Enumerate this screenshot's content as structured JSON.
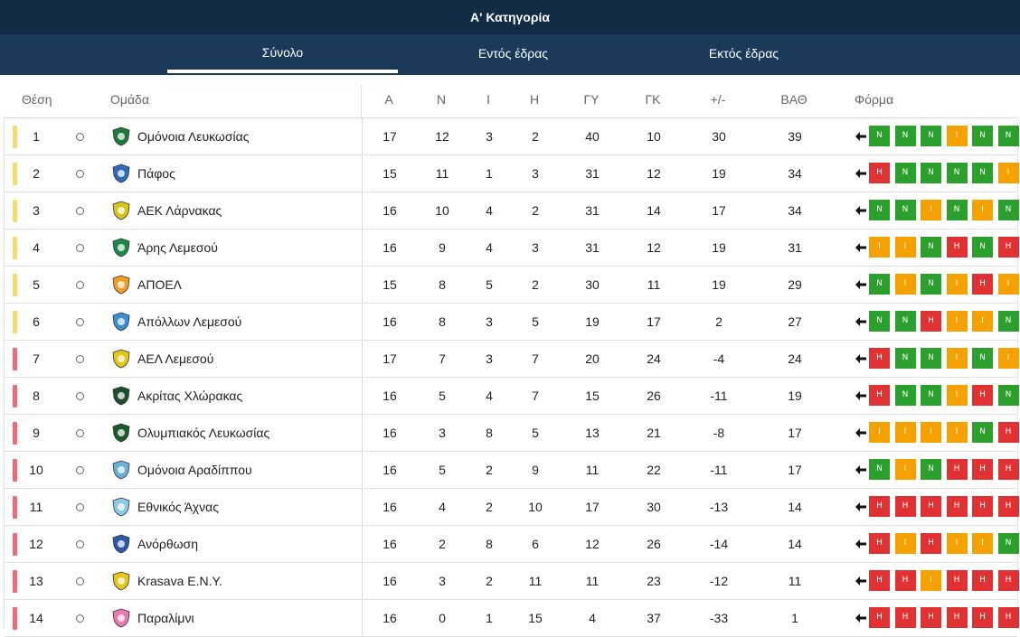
{
  "title": "A' Κατηγορία",
  "tabs": [
    {
      "label": "Σύνολο",
      "active": true
    },
    {
      "label": "Εντός έδρας",
      "active": false
    },
    {
      "label": "Εκτός έδρας",
      "active": false
    }
  ],
  "headers": {
    "pos": "Θέση",
    "team": "Ομάδα",
    "played": "Α",
    "won": "Ν",
    "drawn": "Ι",
    "lost": "Η",
    "gf": "ΓΥ",
    "ga": "ΓΚ",
    "gd": "+/-",
    "pts": "ΒΑΘ",
    "form": "Φόρμα"
  },
  "colors": {
    "win": "#2ca02c",
    "draw": "#f5a100",
    "loss": "#e03232",
    "zone_top": "#f6dd6b",
    "zone_bottom": "#ef6b7b"
  },
  "rows": [
    {
      "pos": "1",
      "team": "Ομόνοια Λευκωσίας",
      "played": "17",
      "won": "12",
      "drawn": "3",
      "lost": "2",
      "gf": "40",
      "ga": "10",
      "gd": "30",
      "pts": "39",
      "zone": "top",
      "logo_color": "#1e7a3a",
      "form": [
        "N",
        "N",
        "N",
        "I",
        "N",
        "N"
      ]
    },
    {
      "pos": "2",
      "team": "Πάφος",
      "played": "15",
      "won": "11",
      "drawn": "1",
      "lost": "3",
      "gf": "31",
      "ga": "12",
      "gd": "19",
      "pts": "34",
      "zone": "top",
      "logo_color": "#2e6bb8",
      "form": [
        "H",
        "N",
        "N",
        "N",
        "N",
        "I"
      ]
    },
    {
      "pos": "3",
      "team": "ΑΕΚ Λάρνακας",
      "played": "16",
      "won": "10",
      "drawn": "4",
      "lost": "2",
      "gf": "31",
      "ga": "14",
      "gd": "17",
      "pts": "34",
      "zone": "top",
      "logo_color": "#d8c41a",
      "form": [
        "N",
        "N",
        "I",
        "N",
        "I",
        "N"
      ]
    },
    {
      "pos": "4",
      "team": "Άρης Λεμεσού",
      "played": "16",
      "won": "9",
      "drawn": "4",
      "lost": "3",
      "gf": "31",
      "ga": "12",
      "gd": "19",
      "pts": "31",
      "zone": "top",
      "logo_color": "#1e8a4a",
      "form": [
        "I",
        "I",
        "N",
        "H",
        "N",
        "H"
      ]
    },
    {
      "pos": "5",
      "team": "ΑΠΟΕΛ",
      "played": "15",
      "won": "8",
      "drawn": "5",
      "lost": "2",
      "gf": "30",
      "ga": "11",
      "gd": "19",
      "pts": "29",
      "zone": "top",
      "logo_color": "#f0a020",
      "form": [
        "N",
        "I",
        "N",
        "I",
        "H",
        "I"
      ]
    },
    {
      "pos": "6",
      "team": "Απόλλων Λεμεσού",
      "played": "16",
      "won": "8",
      "drawn": "3",
      "lost": "5",
      "gf": "19",
      "ga": "17",
      "gd": "2",
      "pts": "27",
      "zone": "top",
      "logo_color": "#3b8fd0",
      "form": [
        "N",
        "N",
        "H",
        "I",
        "I",
        "N"
      ]
    },
    {
      "pos": "7",
      "team": "ΑΕΛ Λεμεσού",
      "played": "17",
      "won": "7",
      "drawn": "3",
      "lost": "7",
      "gf": "20",
      "ga": "24",
      "gd": "-4",
      "pts": "24",
      "zone": "bottom",
      "logo_color": "#e6c619",
      "form": [
        "H",
        "N",
        "N",
        "I",
        "N",
        "I"
      ]
    },
    {
      "pos": "8",
      "team": "Ακρίτας Χλώρακας",
      "played": "16",
      "won": "5",
      "drawn": "4",
      "lost": "7",
      "gf": "15",
      "ga": "26",
      "gd": "-11",
      "pts": "19",
      "zone": "bottom",
      "logo_color": "#1b4d2e",
      "form": [
        "H",
        "N",
        "N",
        "I",
        "H",
        "N"
      ]
    },
    {
      "pos": "9",
      "team": "Ολυμπιακός Λευκωσίας",
      "played": "16",
      "won": "3",
      "drawn": "8",
      "lost": "5",
      "gf": "13",
      "ga": "21",
      "gd": "-8",
      "pts": "17",
      "zone": "bottom",
      "logo_color": "#1a5a2c",
      "form": [
        "I",
        "I",
        "I",
        "I",
        "N",
        "H"
      ]
    },
    {
      "pos": "10",
      "team": "Ομόνοια Αραδίππου",
      "played": "16",
      "won": "5",
      "drawn": "2",
      "lost": "9",
      "gf": "11",
      "ga": "22",
      "gd": "-11",
      "pts": "17",
      "zone": "bottom",
      "logo_color": "#6ab0d8",
      "form": [
        "N",
        "I",
        "N",
        "H",
        "H",
        "H"
      ]
    },
    {
      "pos": "11",
      "team": "Εθνικός Άχνας",
      "played": "16",
      "won": "4",
      "drawn": "2",
      "lost": "10",
      "gf": "17",
      "ga": "30",
      "gd": "-13",
      "pts": "14",
      "zone": "bottom",
      "logo_color": "#8cc8e8",
      "form": [
        "H",
        "H",
        "H",
        "H",
        "H",
        "H"
      ]
    },
    {
      "pos": "12",
      "team": "Ανόρθωση",
      "played": "16",
      "won": "2",
      "drawn": "8",
      "lost": "6",
      "gf": "12",
      "ga": "26",
      "gd": "-14",
      "pts": "14",
      "zone": "bottom",
      "logo_color": "#2a5aa8",
      "form": [
        "H",
        "I",
        "H",
        "I",
        "I",
        "N"
      ]
    },
    {
      "pos": "13",
      "team": "Krasava E.N.Y.",
      "played": "16",
      "won": "3",
      "drawn": "2",
      "lost": "11",
      "gf": "11",
      "ga": "23",
      "gd": "-12",
      "pts": "11",
      "zone": "bottom",
      "logo_color": "#e8c51a",
      "form": [
        "H",
        "H",
        "I",
        "H",
        "H",
        "H"
      ]
    },
    {
      "pos": "14",
      "team": "Παραλίμνι",
      "played": "16",
      "won": "0",
      "drawn": "1",
      "lost": "15",
      "gf": "4",
      "ga": "37",
      "gd": "-33",
      "pts": "1",
      "zone": "bottom",
      "logo_color": "#e87ab0",
      "form": [
        "H",
        "H",
        "H",
        "H",
        "H",
        "H"
      ]
    }
  ]
}
